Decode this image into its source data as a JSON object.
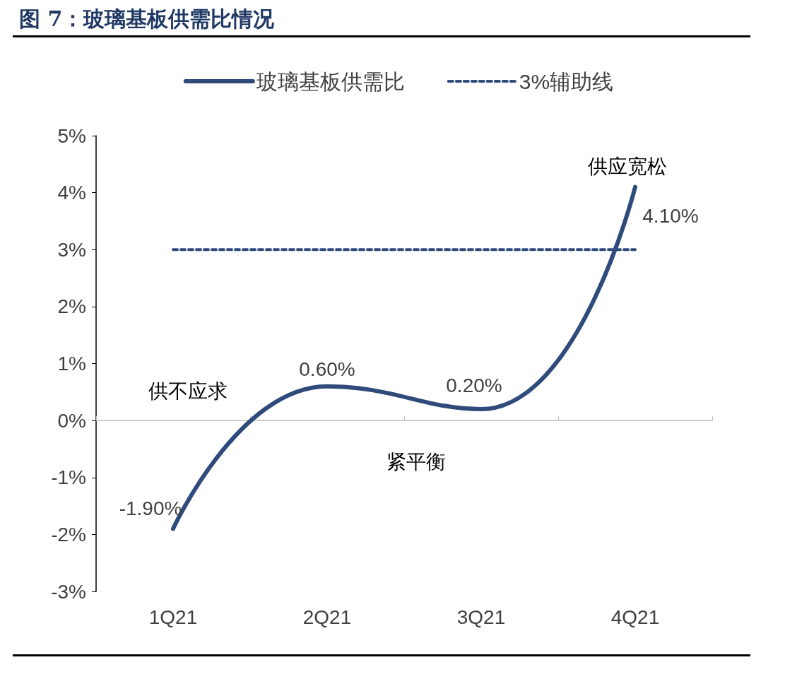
{
  "chart_data": {
    "type": "line",
    "title": "图 7：玻璃基板供需比情况",
    "categories": [
      "1Q21",
      "2Q21",
      "3Q21",
      "4Q21"
    ],
    "series": [
      {
        "name": "玻璃基板供需比",
        "color": "#2f4b7c",
        "values": [
          -1.9,
          0.6,
          0.2,
          4.1
        ],
        "value_labels": [
          "-1.90%",
          "0.60%",
          "0.20%",
          "4.10%"
        ],
        "line_style": "solid"
      },
      {
        "name": "3%辅助线",
        "color": "#2f4b7c",
        "values": [
          3,
          3,
          3,
          3
        ],
        "line_style": "dashed"
      }
    ],
    "ylim": [
      -3,
      5
    ],
    "yticks": [
      {
        "value": -3,
        "label": "-3%"
      },
      {
        "value": -2,
        "label": "-2%"
      },
      {
        "value": -1,
        "label": "-1%"
      },
      {
        "value": 0,
        "label": "0%"
      },
      {
        "value": 1,
        "label": "1%"
      },
      {
        "value": 2,
        "label": "2%"
      },
      {
        "value": 3,
        "label": "3%"
      },
      {
        "value": 4,
        "label": "4%"
      },
      {
        "value": 5,
        "label": "5%"
      }
    ],
    "legend": "top",
    "marker": "none",
    "annotations": [
      "供不应求",
      "紧平衡",
      "供应宽松"
    ]
  }
}
